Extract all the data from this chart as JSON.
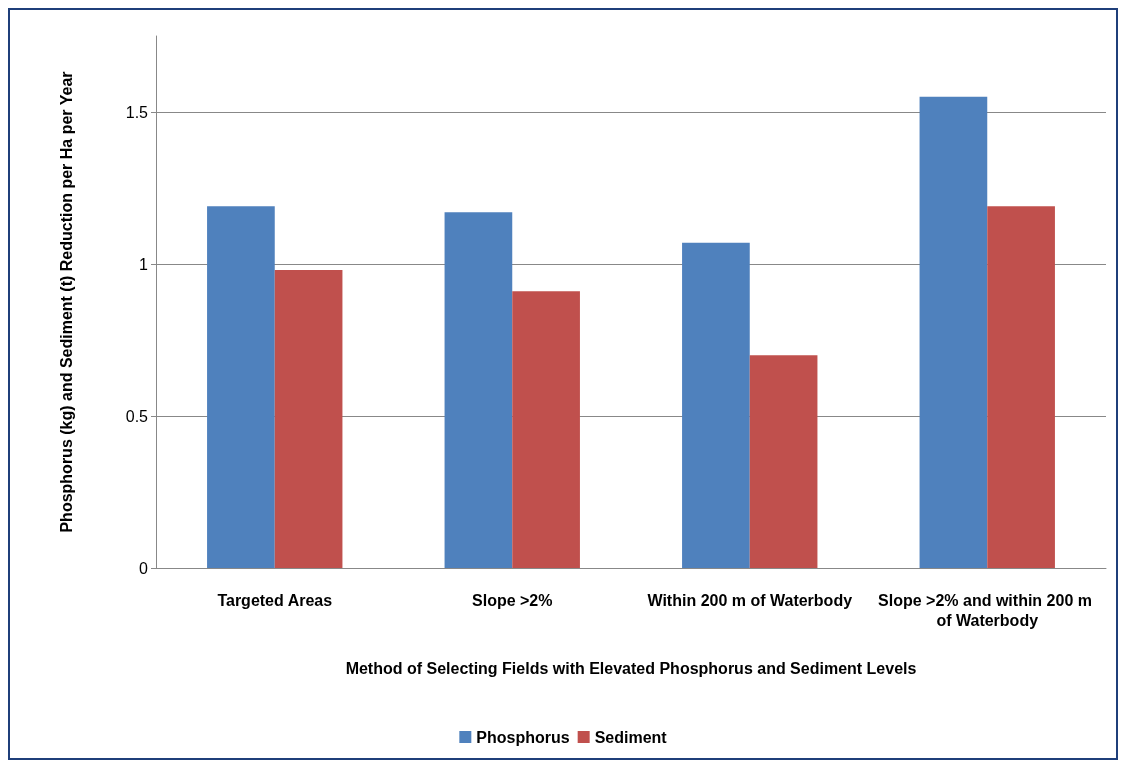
{
  "chart_data": {
    "type": "bar",
    "xlabel": "Method of Selecting Fields with Elevated Phosphorus and Sediment Levels",
    "ylabel": "Phosphorus (kg) and Sediment (t) Reduction per Ha per Year",
    "categories": [
      "Targeted Areas",
      "Slope >2%",
      "Within 200 m of Waterbody",
      "Slope >2% and within 200 m of Waterbody"
    ],
    "series": [
      {
        "name": "Phosphorus",
        "color": "#4f81bd",
        "values": [
          1.19,
          1.17,
          1.07,
          1.55
        ]
      },
      {
        "name": "Sediment",
        "color": "#c0504d",
        "values": [
          0.98,
          0.91,
          0.7,
          1.19
        ]
      }
    ],
    "ylim": [
      0,
      1.75
    ],
    "yticks": [
      0,
      0.5,
      1,
      1.5
    ],
    "grid": "y",
    "legend": "bottom"
  }
}
